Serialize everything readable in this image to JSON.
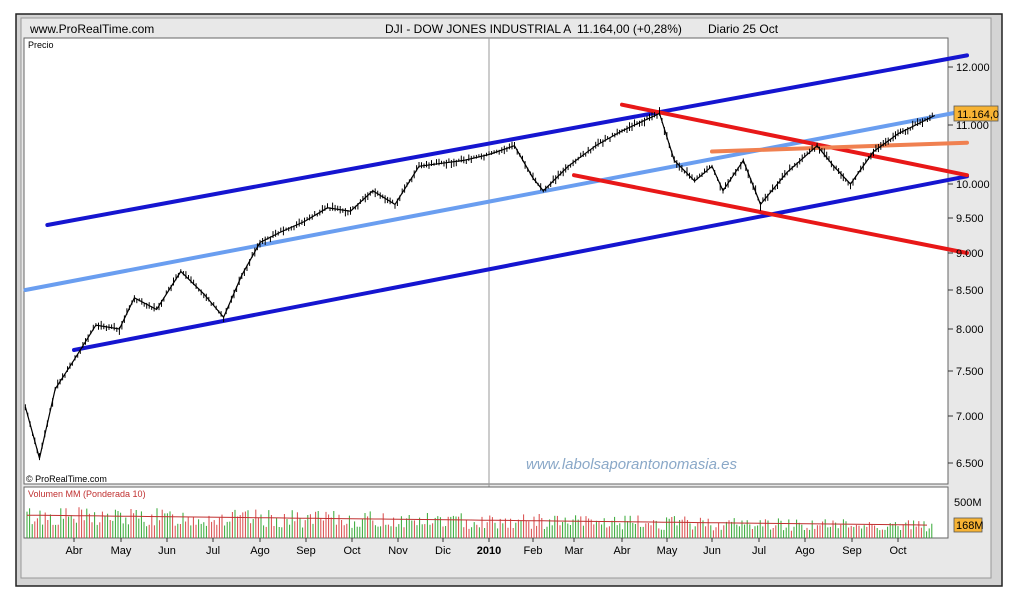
{
  "header": {
    "source": "www.ProRealTime.com",
    "instrument": "DJI - DOW JONES INDUSTRIAL A",
    "quote": "11.164,00 (+0,28%)",
    "period": "Diario 25 Oct"
  },
  "panel": {
    "price_label": "Precio",
    "copyright": "© ProRealTime.com",
    "watermark": "www.labolsaporantonomasia.es",
    "volume_label": "Volumen MM (Ponderada 10)"
  },
  "chart_data": {
    "type": "line",
    "title": "DJI - DOW JONES INDUSTRIAL A",
    "ylabel": "Precio",
    "ylim": [
      6300,
      12300
    ],
    "y_ticks": [
      "12.000",
      "11.000",
      "10.000",
      "9.500",
      "9.000",
      "8.500",
      "8.000",
      "7.500",
      "7.000",
      "6.500"
    ],
    "y_tick_values": [
      12000,
      11000,
      10000,
      9500,
      9000,
      8500,
      8000,
      7500,
      7000,
      6500
    ],
    "x_ticks": [
      "Abr",
      "May",
      "Jun",
      "Jul",
      "Ago",
      "Sep",
      "Oct",
      "Nov",
      "Dic",
      "2010",
      "Feb",
      "Mar",
      "Abr",
      "May",
      "Jun",
      "Jul",
      "Ago",
      "Sep",
      "Oct"
    ],
    "last_value_label": "11.164,0",
    "last_value": 11164,
    "price_series": [
      [
        "2009-03-01",
        7100
      ],
      [
        "2009-03-10",
        6550
      ],
      [
        "2009-03-20",
        7300
      ],
      [
        "2009-03-31",
        7600
      ],
      [
        "2009-04-15",
        8050
      ],
      [
        "2009-04-30",
        8000
      ],
      [
        "2009-05-10",
        8400
      ],
      [
        "2009-05-25",
        8250
      ],
      [
        "2009-06-10",
        8750
      ],
      [
        "2009-06-25",
        8450
      ],
      [
        "2009-07-08",
        8150
      ],
      [
        "2009-07-20",
        8700
      ],
      [
        "2009-08-01",
        9150
      ],
      [
        "2009-08-15",
        9300
      ],
      [
        "2009-08-31",
        9450
      ],
      [
        "2009-09-15",
        9650
      ],
      [
        "2009-09-30",
        9600
      ],
      [
        "2009-10-15",
        9900
      ],
      [
        "2009-10-30",
        9700
      ],
      [
        "2009-11-15",
        10300
      ],
      [
        "2009-11-30",
        10350
      ],
      [
        "2009-12-15",
        10400
      ],
      [
        "2010-01-01",
        10500
      ],
      [
        "2010-01-19",
        10650
      ],
      [
        "2010-02-01",
        10100
      ],
      [
        "2010-02-08",
        9900
      ],
      [
        "2010-02-25",
        10300
      ],
      [
        "2010-03-15",
        10650
      ],
      [
        "2010-04-01",
        10900
      ],
      [
        "2010-04-26",
        11200
      ],
      [
        "2010-05-06",
        10400
      ],
      [
        "2010-05-20",
        10050
      ],
      [
        "2010-06-01",
        10300
      ],
      [
        "2010-06-08",
        9900
      ],
      [
        "2010-06-21",
        10400
      ],
      [
        "2010-07-02",
        9700
      ],
      [
        "2010-07-20",
        10200
      ],
      [
        "2010-08-09",
        10650
      ],
      [
        "2010-08-20",
        10300
      ],
      [
        "2010-08-31",
        10000
      ],
      [
        "2010-09-15",
        10550
      ],
      [
        "2010-10-01",
        10850
      ],
      [
        "2010-10-25",
        11164
      ]
    ],
    "trendlines": [
      {
        "color": "#1515d0",
        "from": [
          "2009-03-15",
          9400
        ],
        "to": [
          "2010-11-15",
          12200
        ]
      },
      {
        "color": "#1515d0",
        "from": [
          "2009-04-01",
          7750
        ],
        "to": [
          "2010-11-15",
          10130
        ]
      },
      {
        "color": "#6a9ef0",
        "from": [
          "2009-03-01",
          8500
        ],
        "to": [
          "2010-11-15",
          11250
        ]
      },
      {
        "color": "#e81818",
        "from": [
          "2010-04-01",
          11350
        ],
        "to": [
          "2010-11-15",
          10150
        ]
      },
      {
        "color": "#e81818",
        "from": [
          "2010-03-01",
          10150
        ],
        "to": [
          "2010-11-15",
          9000
        ]
      },
      {
        "color": "#f08050",
        "from": [
          "2010-06-01",
          10550
        ],
        "to": [
          "2010-11-15",
          10700
        ]
      }
    ],
    "volume": {
      "label": "Volumen MM (Ponderada 10)",
      "ylim": [
        0,
        600
      ],
      "y_ticks": [
        "500M"
      ],
      "y_tick_values": [
        500
      ],
      "last_value_label": "168M",
      "last_value": 168
    }
  }
}
